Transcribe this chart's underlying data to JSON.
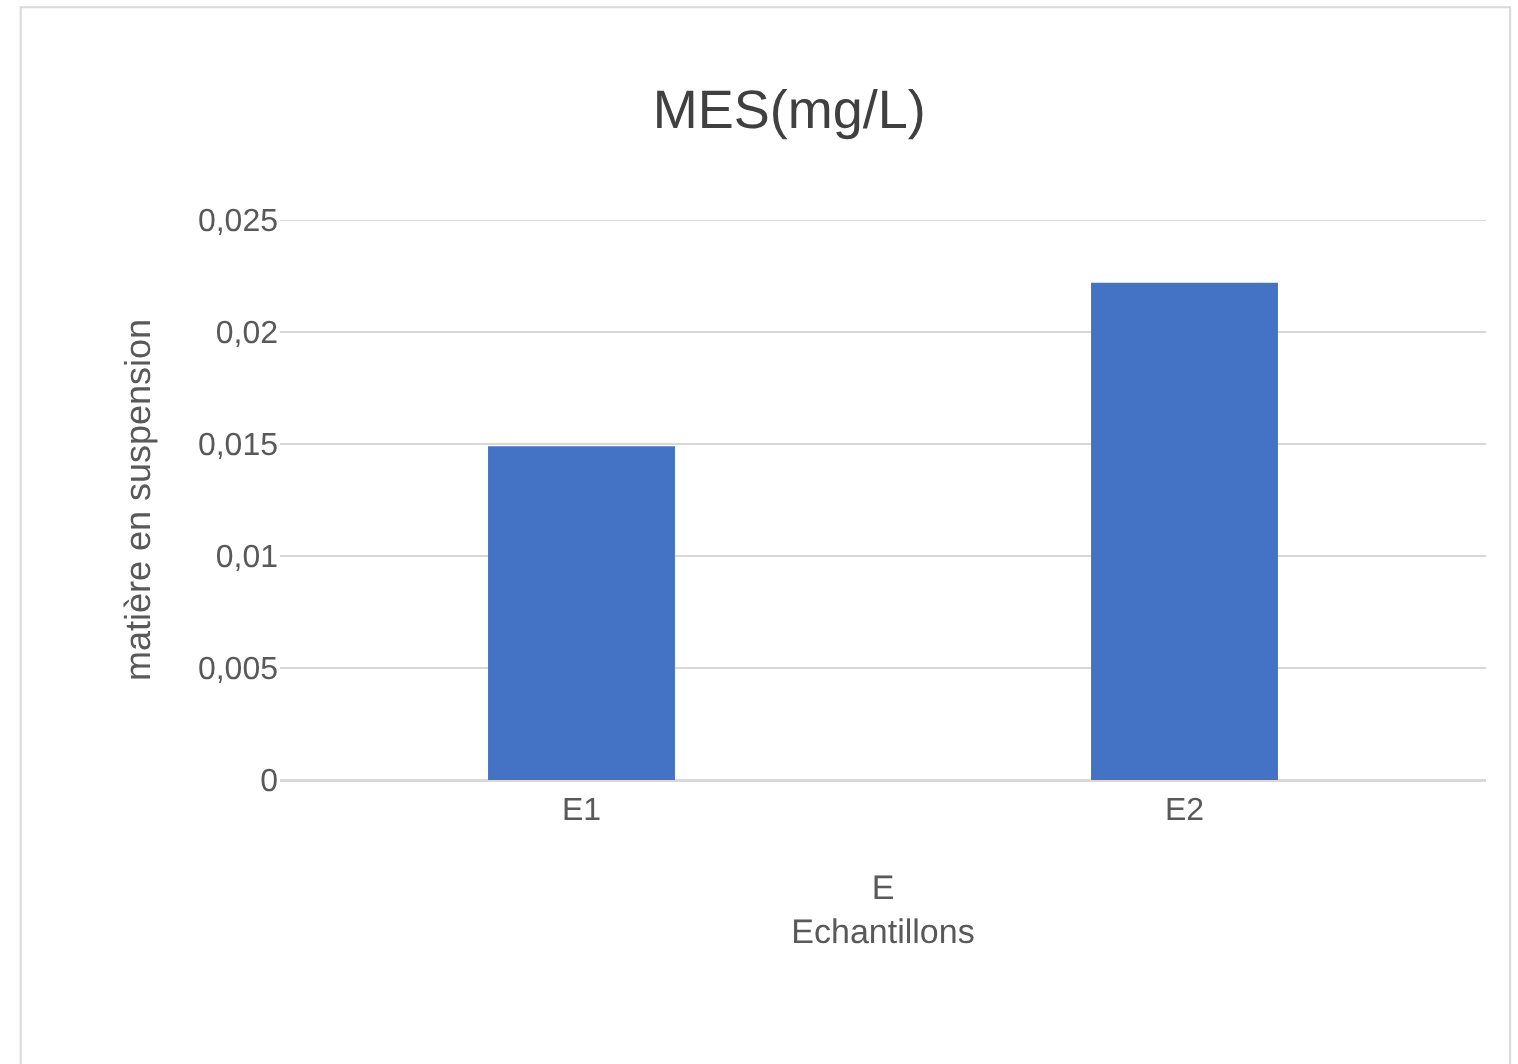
{
  "chart_data": {
    "type": "bar",
    "title": "MES(mg/L)",
    "xlabel": "E\nEchantillons",
    "ylabel": "matière en suspension",
    "categories": [
      "E1",
      "E2"
    ],
    "values": [
      0.0149,
      0.0222
    ],
    "color": "#4472c4",
    "ylim": [
      0,
      0.025
    ],
    "yticks": [
      0,
      {
        "value": 0.005,
        "label": "0,005"
      },
      {
        "value": 0.01,
        "label": "0,01"
      },
      {
        "value": 0.015,
        "label": "0,015"
      },
      {
        "value": 0.02,
        "label": "0,02"
      },
      {
        "value": 0.025,
        "label": "0,025"
      }
    ],
    "grid": "y"
  }
}
